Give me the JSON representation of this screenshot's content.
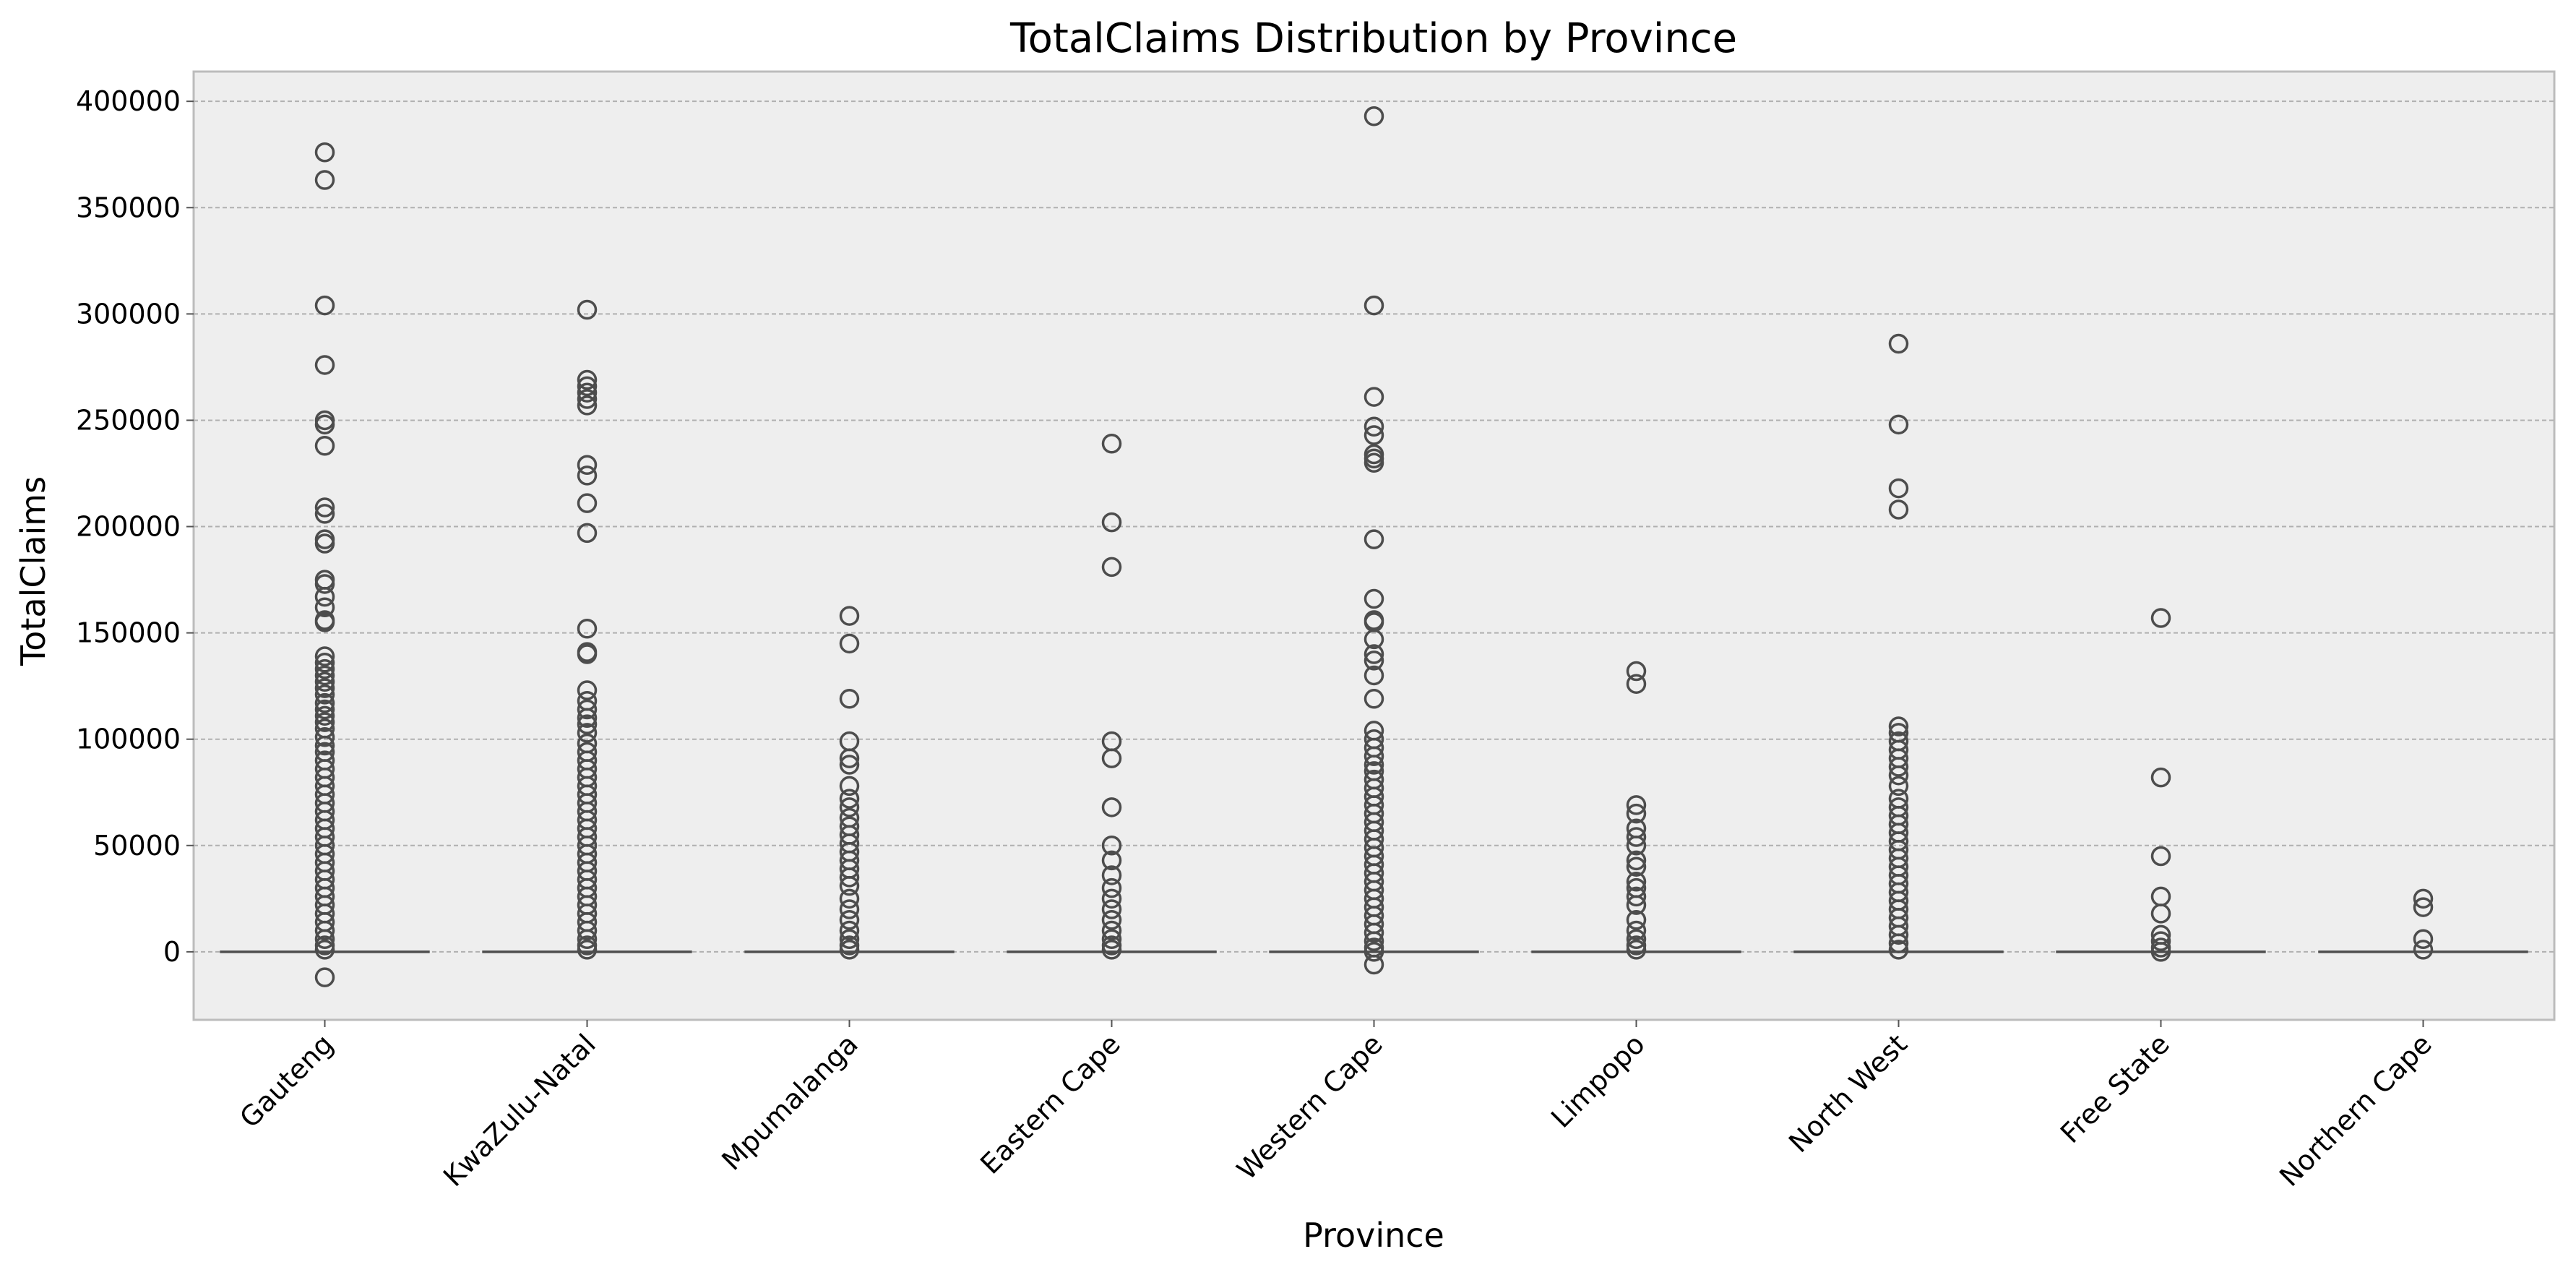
{
  "chart_data": {
    "type": "box",
    "title": "TotalClaims Distribution by Province",
    "xlabel": "Province",
    "ylabel": "TotalClaims",
    "ylim": [
      -32000,
      414000
    ],
    "yticks": [
      0,
      50000,
      100000,
      150000,
      200000,
      250000,
      300000,
      350000,
      400000
    ],
    "ytick_labels": [
      "0",
      "50000",
      "100000",
      "150000",
      "200000",
      "250000",
      "300000",
      "350000",
      "400000"
    ],
    "grid": true,
    "box_color": "#4d4d4d",
    "background": "#eeeeee",
    "categories": [
      "Gauteng",
      "KwaZulu-Natal",
      "Mpumalanga",
      "Eastern Cape",
      "Western Cape",
      "Limpopo",
      "North West",
      "Free State",
      "Northern Cape"
    ],
    "boxes": [
      {
        "category": "Gauteng",
        "q1": 0,
        "median": 0,
        "q3": 0,
        "whisker_low": 0,
        "whisker_high": 0,
        "outliers": [
          376000,
          363000,
          304000,
          276000,
          250000,
          248000,
          238000,
          209000,
          206000,
          194000,
          192000,
          175000,
          173000,
          167000,
          162000,
          156000,
          155000,
          139000,
          136000,
          133000,
          130000,
          127000,
          124000,
          121000,
          117000,
          114000,
          111000,
          108000,
          105000,
          101000,
          97000,
          94000,
          90000,
          86000,
          82000,
          78000,
          74000,
          70000,
          66000,
          62000,
          58000,
          54000,
          50000,
          46000,
          42000,
          38000,
          34000,
          30000,
          26000,
          22000,
          18000,
          14000,
          10000,
          6000,
          3000,
          1000,
          -12000
        ]
      },
      {
        "category": "KwaZulu-Natal",
        "q1": 0,
        "median": 0,
        "q3": 0,
        "whisker_low": 0,
        "whisker_high": 0,
        "outliers": [
          302000,
          269000,
          266000,
          263000,
          260000,
          257000,
          229000,
          224000,
          211000,
          197000,
          152000,
          141000,
          140000,
          123000,
          118000,
          114000,
          110000,
          107000,
          103000,
          98000,
          94000,
          90000,
          86000,
          82000,
          78000,
          74000,
          70000,
          66000,
          62000,
          58000,
          54000,
          50000,
          46000,
          42000,
          38000,
          34000,
          30000,
          26000,
          22000,
          18000,
          14000,
          10000,
          6000,
          3000,
          1000
        ]
      },
      {
        "category": "Mpumalanga",
        "q1": 0,
        "median": 0,
        "q3": 0,
        "whisker_low": 0,
        "whisker_high": 0,
        "outliers": [
          158000,
          145000,
          119000,
          99000,
          91000,
          88000,
          78000,
          72000,
          68000,
          63000,
          59000,
          55000,
          51000,
          47000,
          43000,
          39000,
          35000,
          31000,
          25000,
          20000,
          15000,
          10000,
          6000,
          3000,
          1000
        ]
      },
      {
        "category": "Eastern Cape",
        "q1": 0,
        "median": 0,
        "q3": 0,
        "whisker_low": 0,
        "whisker_high": 0,
        "outliers": [
          239000,
          202000,
          181000,
          99000,
          91000,
          68000,
          50000,
          43000,
          36000,
          30000,
          25000,
          20000,
          15000,
          10000,
          6000,
          3000,
          1000
        ]
      },
      {
        "category": "Western Cape",
        "q1": 0,
        "median": 0,
        "q3": 0,
        "whisker_low": 0,
        "whisker_high": 0,
        "outliers": [
          393000,
          304000,
          261000,
          247000,
          243000,
          234000,
          232000,
          230000,
          194000,
          166000,
          156000,
          155000,
          147000,
          140000,
          137000,
          130000,
          119000,
          104000,
          100000,
          96000,
          92000,
          88000,
          85000,
          81000,
          77000,
          73000,
          69000,
          65000,
          61000,
          57000,
          53000,
          49000,
          45000,
          41000,
          37000,
          33000,
          29000,
          25000,
          21000,
          17000,
          13000,
          9000,
          5000,
          2000,
          0,
          -6000
        ]
      },
      {
        "category": "Limpopo",
        "q1": 0,
        "median": 0,
        "q3": 0,
        "whisker_low": 0,
        "whisker_high": 0,
        "outliers": [
          132000,
          126000,
          69000,
          65000,
          58000,
          54000,
          50000,
          43000,
          40000,
          33000,
          30000,
          26000,
          22000,
          15000,
          10000,
          6000,
          3000,
          1000
        ]
      },
      {
        "category": "North West",
        "q1": 0,
        "median": 0,
        "q3": 0,
        "whisker_low": 0,
        "whisker_high": 0,
        "outliers": [
          286000,
          248000,
          218000,
          208000,
          106000,
          103000,
          99000,
          95000,
          91000,
          87000,
          83000,
          78000,
          72000,
          68000,
          64000,
          60000,
          56000,
          52000,
          48000,
          44000,
          40000,
          36000,
          32000,
          28000,
          24000,
          20000,
          16000,
          12000,
          8000,
          4000,
          1000
        ]
      },
      {
        "category": "Free State",
        "q1": 0,
        "median": 0,
        "q3": 0,
        "whisker_low": 0,
        "whisker_high": 0,
        "outliers": [
          157000,
          82000,
          45000,
          26000,
          18000,
          8000,
          5000,
          2000,
          0
        ]
      },
      {
        "category": "Northern Cape",
        "q1": 0,
        "median": 0,
        "q3": 0,
        "whisker_low": 0,
        "whisker_high": 0,
        "outliers": [
          25000,
          21000,
          6000,
          1000
        ]
      }
    ]
  }
}
